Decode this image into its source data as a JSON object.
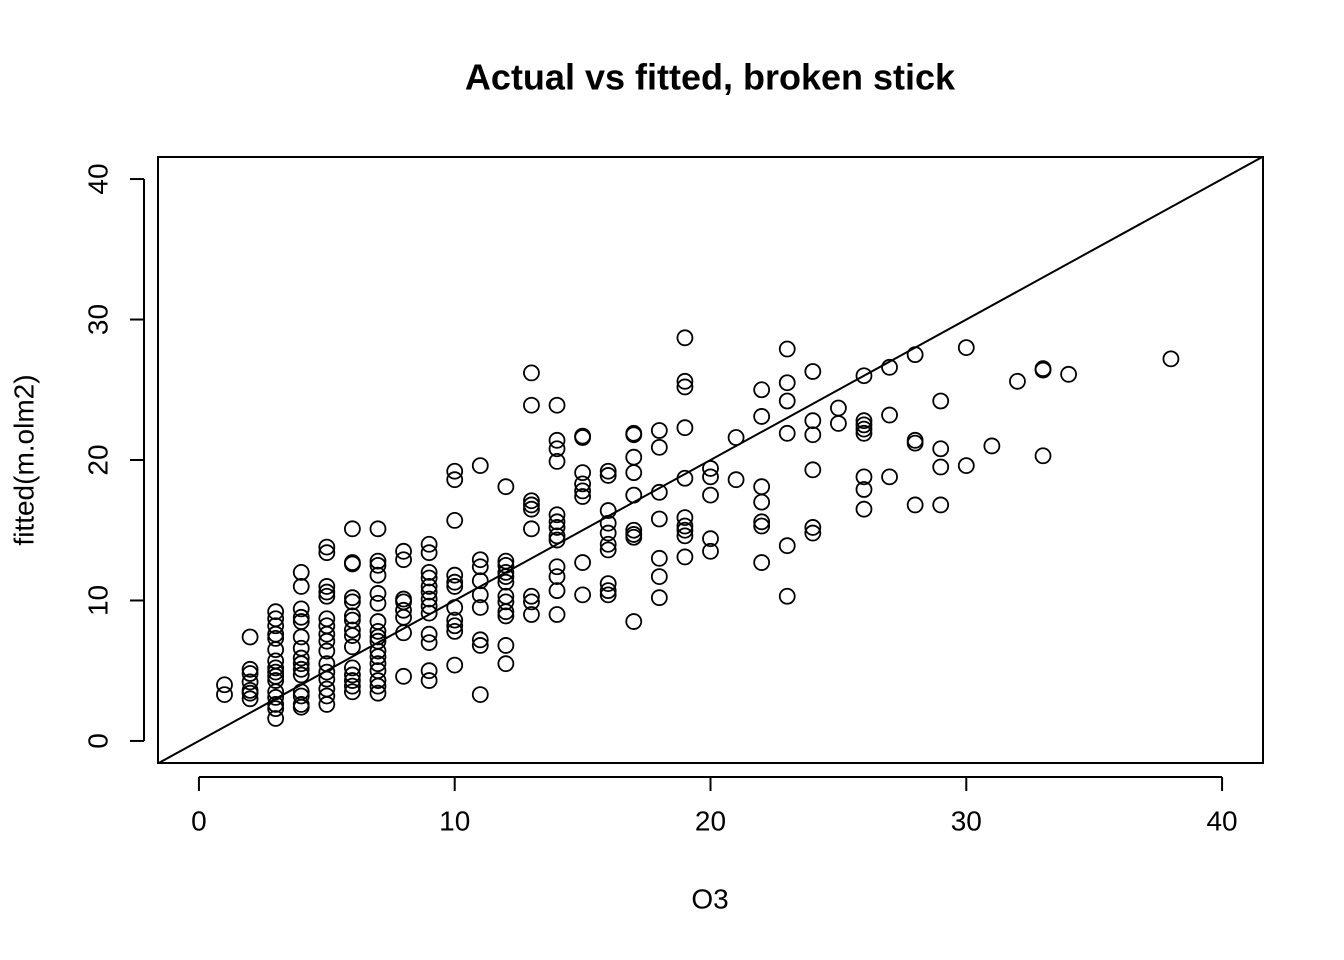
{
  "chart_data": {
    "type": "scatter",
    "title": "Actual vs fitted, broken stick",
    "xlabel": "O3",
    "ylabel": "fitted(m.olm2)",
    "xlim": [
      -1.6,
      41.6
    ],
    "ylim": [
      -1.57,
      41.57
    ],
    "xticks": [
      0,
      10,
      20,
      30,
      40
    ],
    "yticks": [
      0,
      10,
      20,
      30,
      40
    ],
    "color": "#000000",
    "abline": {
      "intercept": 0,
      "slope": 1
    },
    "x": [
      1,
      1,
      2,
      2,
      2,
      2,
      2,
      2,
      2,
      3,
      3,
      3,
      3,
      3,
      3,
      3,
      3,
      3,
      3,
      3,
      3,
      3,
      3,
      3,
      3,
      4,
      4,
      4,
      4,
      4,
      4,
      4,
      4,
      4,
      4,
      4,
      4,
      4,
      4,
      4,
      5,
      5,
      5,
      5,
      5,
      5,
      5,
      5,
      5,
      5,
      5,
      5,
      5,
      5,
      5,
      5,
      6,
      6,
      6,
      6,
      6,
      6,
      6,
      6,
      6,
      6,
      6,
      6,
      6,
      6,
      6,
      7,
      7,
      7,
      7,
      7,
      7,
      7,
      7,
      7,
      7,
      7,
      7,
      7,
      7,
      7,
      7,
      7,
      8,
      8,
      8,
      8,
      8,
      8,
      8,
      8,
      9,
      9,
      9,
      9,
      9,
      9,
      9,
      9,
      9,
      9,
      9,
      9,
      9,
      10,
      10,
      10,
      10,
      10,
      10,
      10,
      10,
      10,
      10,
      10,
      11,
      11,
      11,
      11,
      11,
      11,
      11,
      11,
      11,
      12,
      12,
      12,
      12,
      12,
      12,
      12,
      12,
      12,
      12,
      12,
      12,
      13,
      13,
      13,
      13,
      13,
      13,
      13,
      13,
      13,
      14,
      14,
      14,
      14,
      14,
      14,
      14,
      14,
      14,
      14,
      14,
      14,
      14,
      15,
      15,
      15,
      15,
      15,
      15,
      15,
      15,
      16,
      16,
      16,
      16,
      16,
      16,
      16,
      16,
      16,
      16,
      17,
      17,
      17,
      17,
      17,
      17,
      17,
      17,
      17,
      18,
      18,
      18,
      18,
      18,
      18,
      18,
      19,
      19,
      19,
      19,
      19,
      19,
      19,
      19,
      19,
      19,
      20,
      20,
      20,
      20,
      20,
      21,
      21,
      22,
      22,
      22,
      22,
      22,
      22,
      22,
      23,
      23,
      23,
      23,
      23,
      23,
      24,
      24,
      24,
      24,
      24,
      24,
      25,
      25,
      26,
      26,
      26,
      26,
      26,
      26,
      26,
      26,
      27,
      27,
      27,
      28,
      28,
      28,
      28,
      29,
      29,
      29,
      29,
      30,
      30,
      31,
      32,
      33,
      33,
      33,
      34,
      38
    ],
    "y": [
      4.0,
      3.3,
      7.4,
      5.1,
      4.8,
      4.2,
      3.6,
      3.4,
      3.0,
      9.2,
      8.7,
      8.2,
      7.6,
      7.3,
      6.5,
      5.7,
      5.2,
      4.9,
      4.6,
      4.3,
      3.5,
      3.1,
      2.6,
      2.3,
      1.6,
      12.0,
      11.0,
      9.4,
      8.8,
      8.5,
      7.4,
      6.6,
      5.9,
      5.5,
      5.1,
      4.7,
      3.5,
      3.2,
      2.6,
      2.4,
      13.8,
      13.4,
      11.0,
      10.6,
      10.3,
      8.7,
      8.2,
      7.6,
      7.1,
      6.4,
      5.5,
      4.9,
      4.4,
      3.7,
      3.2,
      2.6,
      15.1,
      12.7,
      12.6,
      10.2,
      9.9,
      8.9,
      8.6,
      7.9,
      7.5,
      6.7,
      5.2,
      4.7,
      4.3,
      3.9,
      3.5,
      15.1,
      12.8,
      12.5,
      11.8,
      10.5,
      9.8,
      8.5,
      7.8,
      7.4,
      7.1,
      6.4,
      6.0,
      5.5,
      5.0,
      4.3,
      3.9,
      3.4,
      13.5,
      12.9,
      10.1,
      9.9,
      9.3,
      8.8,
      7.7,
      4.6,
      14.0,
      13.4,
      12.0,
      11.6,
      11.0,
      10.6,
      10.1,
      9.6,
      9.1,
      7.6,
      7.0,
      5.0,
      4.3,
      19.2,
      18.6,
      15.7,
      11.8,
      11.3,
      11.0,
      9.5,
      8.6,
      8.2,
      7.8,
      5.4,
      19.6,
      12.9,
      12.4,
      11.4,
      10.4,
      9.5,
      7.2,
      6.8,
      3.3,
      18.1,
      12.8,
      12.5,
      12.0,
      11.7,
      11.3,
      10.3,
      9.9,
      9.2,
      8.9,
      6.8,
      5.5,
      26.2,
      23.9,
      17.1,
      16.8,
      16.5,
      15.1,
      10.3,
      9.9,
      9.0,
      23.9,
      21.4,
      20.8,
      19.9,
      16.1,
      15.6,
      15.2,
      14.6,
      14.3,
      12.4,
      11.7,
      10.7,
      9.0,
      21.7,
      21.6,
      19.1,
      18.3,
      17.8,
      17.4,
      12.7,
      10.4,
      19.2,
      18.9,
      16.4,
      15.5,
      14.8,
      14.0,
      13.6,
      11.2,
      10.7,
      10.4,
      21.9,
      21.8,
      20.2,
      19.1,
      17.5,
      15.0,
      14.7,
      14.5,
      8.5,
      22.1,
      20.9,
      17.7,
      15.8,
      13.0,
      11.7,
      10.2,
      28.7,
      25.6,
      25.2,
      22.3,
      18.7,
      15.9,
      15.3,
      15.0,
      14.6,
      13.1,
      19.4,
      18.8,
      17.5,
      14.4,
      13.5,
      21.6,
      18.6,
      25.0,
      23.1,
      18.1,
      17.0,
      15.6,
      15.3,
      12.7,
      27.9,
      25.5,
      24.2,
      21.9,
      13.9,
      10.3,
      26.3,
      22.8,
      21.8,
      19.3,
      15.2,
      14.8,
      23.7,
      22.6,
      26.0,
      22.8,
      22.5,
      22.2,
      21.9,
      18.8,
      17.9,
      16.5,
      26.6,
      23.2,
      18.8,
      27.5,
      21.4,
      21.2,
      16.8,
      24.2,
      20.8,
      19.5,
      16.8,
      28.0,
      19.6,
      21.0,
      25.6,
      26.5,
      26.4,
      20.3,
      26.1,
      27.2
    ]
  }
}
